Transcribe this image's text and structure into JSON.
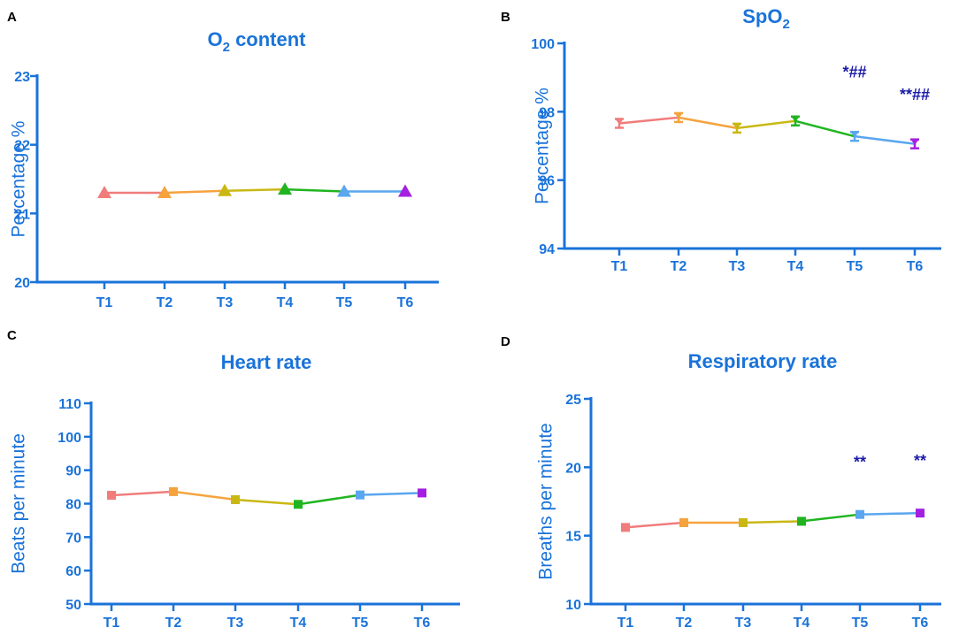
{
  "colors": {
    "axis": "#1a73d9",
    "annotation": "#1a1aa8",
    "points": [
      "#f07c7c",
      "#f5a33d",
      "#c9b814",
      "#20b520",
      "#5aa6ef",
      "#a41fe0"
    ]
  },
  "chart_data": [
    {
      "panel": "A",
      "type": "line",
      "title_main": "O",
      "title_sub": "2",
      "title_rest": " content",
      "ylabel": "Percentage %",
      "categories": [
        "T1",
        "T2",
        "T3",
        "T4",
        "T5",
        "T6"
      ],
      "values": [
        21.3,
        21.3,
        21.33,
        21.35,
        21.32,
        21.32
      ],
      "marker": "triangle",
      "ylim": [
        20,
        23
      ],
      "yticks": [
        20,
        21,
        22,
        23
      ],
      "annotations": []
    },
    {
      "panel": "B",
      "type": "line",
      "title_main": "SpO",
      "title_sub": "2",
      "title_rest": "",
      "ylabel": "Percentage %",
      "categories": [
        "T1",
        "T2",
        "T3",
        "T4",
        "T5",
        "T6"
      ],
      "values": [
        97.66,
        97.83,
        97.52,
        97.73,
        97.28,
        97.06
      ],
      "marker": "errorbar",
      "ylim": [
        94,
        100
      ],
      "yticks": [
        94,
        96,
        98,
        100
      ],
      "annotations": [
        {
          "category": "T5",
          "text": "*##",
          "y": 99.0
        },
        {
          "category": "T6",
          "text": "**##",
          "y": 98.35
        }
      ]
    },
    {
      "panel": "C",
      "type": "line",
      "title_main": "Heart rate",
      "title_sub": "",
      "title_rest": "",
      "ylabel": "Beats per minute",
      "categories": [
        "T1",
        "T2",
        "T3",
        "T4",
        "T5",
        "T6"
      ],
      "values": [
        82.5,
        83.6,
        81.2,
        79.8,
        82.6,
        83.2
      ],
      "marker": "square",
      "ylim": [
        50,
        110
      ],
      "yticks": [
        50,
        60,
        70,
        80,
        90,
        100,
        110
      ],
      "annotations": []
    },
    {
      "panel": "D",
      "type": "line",
      "title_main": "Respiratory rate",
      "title_sub": "",
      "title_rest": "",
      "ylabel": "Breaths per minute",
      "categories": [
        "T1",
        "T2",
        "T3",
        "T4",
        "T5",
        "T6"
      ],
      "values": [
        15.6,
        15.95,
        15.95,
        16.05,
        16.55,
        16.65
      ],
      "marker": "square",
      "ylim": [
        10,
        25
      ],
      "yticks": [
        10,
        15,
        20,
        25
      ],
      "annotations": [
        {
          "category": "T5",
          "text": "**",
          "y": 20.0
        },
        {
          "category": "T6",
          "text": "**",
          "y": 20.1
        }
      ]
    }
  ]
}
